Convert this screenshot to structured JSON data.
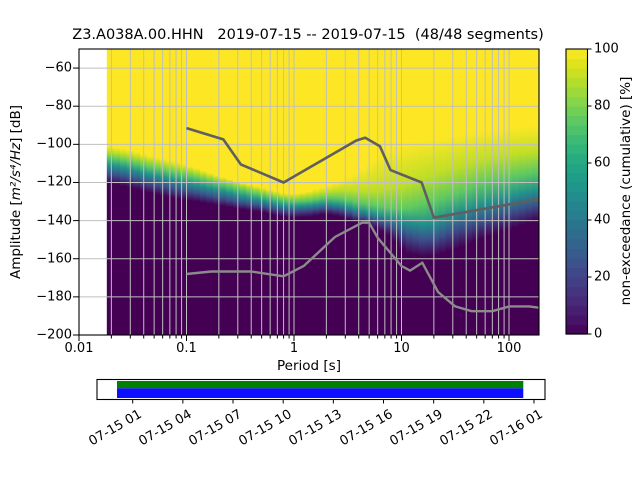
{
  "title": "Z3.A038A.00.HHN   2019-07-15 -- 2019-07-15  (48/48 segments)",
  "chart_data": {
    "type": "heatmap",
    "mode": "ppsd-cumulative-spectral-distribution",
    "xlabel": "Period [s]",
    "ylabel": {
      "prefix": "Amplitude [",
      "math": "m²/s⁴/Hz",
      "suffix": "] [dB]"
    },
    "x_scale": "log",
    "xlim": [
      0.01,
      190
    ],
    "ylim": [
      -200,
      -50
    ],
    "x_tick_values": [
      0.01,
      0.1,
      1,
      10,
      100
    ],
    "x_tick_labels": [
      "0.01",
      "0.1",
      "1",
      "10",
      "100"
    ],
    "y_tick_values": [
      -60,
      -80,
      -100,
      -120,
      -140,
      -160,
      -180,
      -200
    ],
    "y_tick_labels": [
      "−60",
      "−80",
      "−100",
      "−120",
      "−140",
      "−160",
      "−180",
      "−200"
    ],
    "grid": true,
    "grid_color": "#bfbfbf",
    "colormap": "viridis",
    "colorbar": {
      "label": "non-exceedance (cumulative) [%]",
      "tick_values": [
        0,
        20,
        40,
        60,
        80,
        100
      ],
      "tick_labels": [
        "0",
        "20",
        "40",
        "60",
        "80",
        "100"
      ],
      "range": [
        0,
        100
      ],
      "steps": 30
    },
    "mesh_period_start": 0.0183,
    "percentile_levels": [
      0,
      25,
      50,
      75,
      90,
      100
    ],
    "cumulative_percentiles": [
      {
        "period": 0.02,
        "db": [
          -120.5,
          -115.5,
          -111.0,
          -107.0,
          -104.0,
          -101.0
        ]
      },
      {
        "period": 0.032,
        "db": [
          -123.0,
          -118.0,
          -113.5,
          -109.5,
          -106.0,
          -103.5
        ]
      },
      {
        "period": 0.05,
        "db": [
          -126.0,
          -121.0,
          -116.5,
          -112.5,
          -109.0,
          -106.5
        ]
      },
      {
        "period": 0.08,
        "db": [
          -128.5,
          -123.5,
          -119.0,
          -115.0,
          -111.5,
          -109.0
        ]
      },
      {
        "period": 0.125,
        "db": [
          -130.0,
          -125.5,
          -121.5,
          -117.5,
          -114.5,
          -112.5
        ]
      },
      {
        "period": 0.2,
        "db": [
          -132.0,
          -128.0,
          -124.0,
          -120.5,
          -118.0,
          -116.5
        ]
      },
      {
        "period": 0.32,
        "db": [
          -134.0,
          -130.5,
          -127.0,
          -123.5,
          -121.0,
          -120.0
        ]
      },
      {
        "period": 0.5,
        "db": [
          -135.5,
          -132.5,
          -129.5,
          -126.5,
          -124.0,
          -122.5
        ]
      },
      {
        "period": 0.8,
        "db": [
          -138.0,
          -134.5,
          -132.0,
          -129.0,
          -127.0,
          -125.5
        ]
      },
      {
        "period": 1.0,
        "db": [
          -138.5,
          -135.0,
          -132.5,
          -130.0,
          -127.5,
          -126.0
        ]
      },
      {
        "period": 1.4,
        "db": [
          -138.0,
          -134.5,
          -132.0,
          -129.5,
          -126.5,
          -124.5
        ]
      },
      {
        "period": 2.0,
        "db": [
          -136.5,
          -133.5,
          -131.0,
          -128.0,
          -125.0,
          -122.0
        ]
      },
      {
        "period": 2.8,
        "db": [
          -138.0,
          -134.5,
          -132.0,
          -128.5,
          -124.0,
          -119.0
        ]
      },
      {
        "period": 4.0,
        "db": [
          -141.0,
          -137.5,
          -134.5,
          -130.5,
          -124.5,
          -114.5
        ]
      },
      {
        "period": 5.6,
        "db": [
          -143.5,
          -139.5,
          -136.5,
          -132.0,
          -124.5,
          -108.0
        ]
      },
      {
        "period": 8.0,
        "db": [
          -148.0,
          -142.5,
          -138.5,
          -133.5,
          -123.0,
          -101.5
        ]
      },
      {
        "period": 11.0,
        "db": [
          -157.0,
          -147.5,
          -140.5,
          -134.0,
          -121.5,
          -100.0
        ]
      },
      {
        "period": 16.0,
        "db": [
          -159.0,
          -150.0,
          -142.0,
          -131.5,
          -117.5,
          -97.5
        ]
      },
      {
        "period": 22.0,
        "db": [
          -158.0,
          -149.0,
          -140.5,
          -129.0,
          -115.0,
          -96.5
        ]
      },
      {
        "period": 32.0,
        "db": [
          -155.0,
          -144.5,
          -136.0,
          -126.0,
          -112.5,
          -95.0
        ]
      },
      {
        "period": 45.0,
        "db": [
          -151.5,
          -142.0,
          -133.5,
          -122.5,
          -110.0,
          -93.5
        ]
      },
      {
        "period": 63.0,
        "db": [
          -148.5,
          -139.5,
          -131.0,
          -120.0,
          -108.0,
          -92.5
        ]
      },
      {
        "period": 90.0,
        "db": [
          -145.5,
          -136.5,
          -128.5,
          -118.0,
          -106.5,
          -91.5
        ]
      },
      {
        "period": 130.0,
        "db": [
          -142.5,
          -134.0,
          -126.0,
          -116.0,
          -105.0,
          -90.5
        ]
      },
      {
        "period": 190.0,
        "db": [
          -139.5,
          -131.5,
          -124.0,
          -114.0,
          -104.0,
          -90.0
        ]
      }
    ],
    "noise_models": {
      "nhnm": {
        "name": "Peterson NHNM",
        "color": "#5f5f5f",
        "periods": [
          0.1,
          0.22,
          0.32,
          0.8,
          3.8,
          4.6,
          6.3,
          7.9,
          15.4,
          20.0,
          190.0
        ],
        "db": [
          -91.5,
          -97.4,
          -110.5,
          -120.0,
          -98.0,
          -96.5,
          -101.0,
          -113.5,
          -120.0,
          -138.5,
          -128.7
        ]
      },
      "nlnm": {
        "name": "Peterson NLNM",
        "color": "#8b8b8b",
        "periods": [
          0.1,
          0.17,
          0.4,
          0.8,
          1.24,
          2.4,
          4.3,
          5.0,
          6.0,
          10.0,
          12.0,
          15.6,
          21.9,
          31.6,
          45.0,
          70.0,
          101.0,
          154.0,
          190.0
        ],
        "db": [
          -168.0,
          -166.7,
          -166.7,
          -169.2,
          -163.7,
          -148.6,
          -141.1,
          -141.1,
          -149.0,
          -163.8,
          -166.2,
          -162.1,
          -177.5,
          -185.0,
          -187.5,
          -187.5,
          -185.0,
          -185.0,
          -185.7
        ]
      }
    },
    "timeline": {
      "tick_labels": [
        "07-15 01",
        "07-15 04",
        "07-15 07",
        "07-15 10",
        "07-15 13",
        "07-15 16",
        "07-15 19",
        "07-15 22",
        "07-16 01"
      ],
      "coverage_color": "#008000",
      "segments_color": "#0d0dff",
      "bar_span_frac": [
        0.045,
        0.952
      ]
    }
  }
}
